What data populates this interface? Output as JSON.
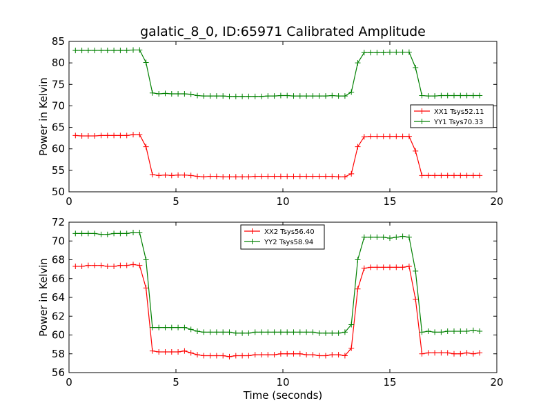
{
  "chart_data": [
    {
      "type": "line",
      "title": "galatic_8_0, ID:65971 Calibrated Amplitude",
      "xlabel": "",
      "ylabel": "Power in Kelvin",
      "xlim": [
        0,
        20
      ],
      "ylim": [
        50,
        85
      ],
      "xticks": [
        "0",
        "5",
        "10",
        "15",
        "20"
      ],
      "yticks": [
        "50",
        "55",
        "60",
        "65",
        "70",
        "75",
        "80",
        "85"
      ],
      "legend_position": "center-right",
      "x": [
        0.3,
        0.6,
        0.9,
        1.2,
        1.5,
        1.8,
        2.1,
        2.4,
        2.7,
        3.0,
        3.3,
        3.6,
        3.9,
        4.2,
        4.5,
        4.8,
        5.1,
        5.4,
        5.7,
        6.0,
        6.3,
        6.6,
        6.9,
        7.2,
        7.5,
        7.8,
        8.1,
        8.4,
        8.7,
        9.0,
        9.3,
        9.6,
        9.9,
        10.2,
        10.5,
        10.8,
        11.1,
        11.4,
        11.7,
        12.0,
        12.3,
        12.6,
        12.9,
        13.2,
        13.5,
        13.8,
        14.1,
        14.4,
        14.7,
        15.0,
        15.3,
        15.6,
        15.9,
        16.2,
        16.5,
        16.8,
        17.1,
        17.4,
        17.7,
        18.0,
        18.3,
        18.6,
        18.9,
        19.2
      ],
      "series": [
        {
          "name": "XX1 Tsys52.11",
          "color": "#ff0000",
          "values": [
            63.1,
            63.0,
            63.0,
            63.0,
            63.1,
            63.1,
            63.1,
            63.1,
            63.1,
            63.3,
            63.3,
            60.5,
            54.0,
            53.8,
            53.9,
            53.8,
            53.9,
            53.9,
            53.8,
            53.6,
            53.5,
            53.6,
            53.6,
            53.5,
            53.5,
            53.5,
            53.5,
            53.5,
            53.6,
            53.6,
            53.6,
            53.6,
            53.6,
            53.6,
            53.6,
            53.6,
            53.6,
            53.6,
            53.6,
            53.6,
            53.6,
            53.5,
            53.5,
            54.2,
            60.5,
            62.8,
            62.9,
            62.9,
            62.9,
            62.9,
            62.9,
            62.9,
            62.9,
            59.5,
            53.8,
            53.8,
            53.8,
            53.8,
            53.8,
            53.8,
            53.8,
            53.8,
            53.8,
            53.8
          ]
        },
        {
          "name": "YY1 Tsys70.33",
          "color": "#008000",
          "values": [
            82.9,
            82.9,
            82.9,
            82.9,
            82.9,
            82.9,
            82.9,
            82.9,
            82.9,
            83.0,
            83.0,
            80.1,
            73.0,
            72.8,
            72.9,
            72.8,
            72.8,
            72.8,
            72.7,
            72.4,
            72.3,
            72.3,
            72.3,
            72.3,
            72.2,
            72.2,
            72.2,
            72.2,
            72.2,
            72.2,
            72.3,
            72.3,
            72.4,
            72.4,
            72.3,
            72.3,
            72.3,
            72.3,
            72.3,
            72.3,
            72.4,
            72.3,
            72.3,
            73.2,
            80.0,
            82.4,
            82.4,
            82.4,
            82.4,
            82.5,
            82.5,
            82.5,
            82.5,
            78.9,
            72.4,
            72.3,
            72.3,
            72.4,
            72.4,
            72.4,
            72.4,
            72.4,
            72.4,
            72.4
          ]
        }
      ]
    },
    {
      "type": "line",
      "title": "",
      "xlabel": "Time (seconds)",
      "ylabel": "Power in Kelvin",
      "xlim": [
        0,
        20
      ],
      "ylim": [
        56,
        72
      ],
      "xticks": [
        "0",
        "5",
        "10",
        "15",
        "20"
      ],
      "yticks": [
        "56",
        "58",
        "60",
        "62",
        "64",
        "66",
        "68",
        "70",
        "72"
      ],
      "legend_position": "top-center",
      "x": [
        0.3,
        0.6,
        0.9,
        1.2,
        1.5,
        1.8,
        2.1,
        2.4,
        2.7,
        3.0,
        3.3,
        3.6,
        3.9,
        4.2,
        4.5,
        4.8,
        5.1,
        5.4,
        5.7,
        6.0,
        6.3,
        6.6,
        6.9,
        7.2,
        7.5,
        7.8,
        8.1,
        8.4,
        8.7,
        9.0,
        9.3,
        9.6,
        9.9,
        10.2,
        10.5,
        10.8,
        11.1,
        11.4,
        11.7,
        12.0,
        12.3,
        12.6,
        12.9,
        13.2,
        13.5,
        13.8,
        14.1,
        14.4,
        14.7,
        15.0,
        15.3,
        15.6,
        15.9,
        16.2,
        16.5,
        16.8,
        17.1,
        17.4,
        17.7,
        18.0,
        18.3,
        18.6,
        18.9,
        19.2
      ],
      "series": [
        {
          "name": "XX2 Tsys56.40",
          "color": "#ff0000",
          "values": [
            67.3,
            67.3,
            67.4,
            67.4,
            67.4,
            67.3,
            67.3,
            67.4,
            67.4,
            67.5,
            67.4,
            65.0,
            58.3,
            58.2,
            58.2,
            58.2,
            58.2,
            58.3,
            58.1,
            57.9,
            57.8,
            57.8,
            57.8,
            57.8,
            57.7,
            57.8,
            57.8,
            57.8,
            57.9,
            57.9,
            57.9,
            57.9,
            58.0,
            58.0,
            58.0,
            58.0,
            57.9,
            57.9,
            57.8,
            57.8,
            57.9,
            57.9,
            57.8,
            58.6,
            64.9,
            67.1,
            67.2,
            67.2,
            67.2,
            67.2,
            67.2,
            67.2,
            67.3,
            63.8,
            58.0,
            58.1,
            58.1,
            58.1,
            58.1,
            58.0,
            58.0,
            58.1,
            58.0,
            58.1
          ]
        },
        {
          "name": "YY2 Tsys58.94",
          "color": "#008000",
          "values": [
            70.8,
            70.8,
            70.8,
            70.8,
            70.7,
            70.7,
            70.8,
            70.8,
            70.8,
            70.9,
            70.9,
            68.0,
            60.8,
            60.8,
            60.8,
            60.8,
            60.8,
            60.8,
            60.6,
            60.4,
            60.3,
            60.3,
            60.3,
            60.3,
            60.3,
            60.2,
            60.2,
            60.2,
            60.3,
            60.3,
            60.3,
            60.3,
            60.3,
            60.3,
            60.3,
            60.3,
            60.3,
            60.3,
            60.2,
            60.2,
            60.2,
            60.2,
            60.3,
            61.1,
            68.0,
            70.4,
            70.4,
            70.4,
            70.4,
            70.3,
            70.4,
            70.5,
            70.4,
            66.8,
            60.3,
            60.4,
            60.3,
            60.3,
            60.4,
            60.4,
            60.4,
            60.4,
            60.5,
            60.4
          ]
        }
      ]
    }
  ]
}
